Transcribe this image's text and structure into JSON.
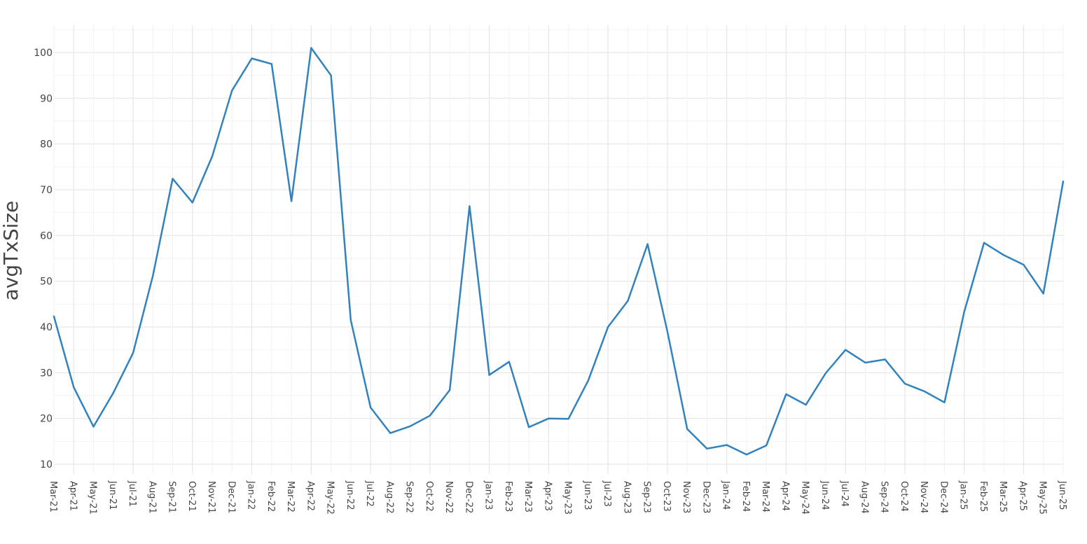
{
  "chart_data": {
    "type": "line",
    "title": "",
    "xlabel": "",
    "ylabel": "avgTxSize",
    "ylim": [
      8,
      106
    ],
    "yticks": [
      10,
      20,
      30,
      40,
      50,
      60,
      70,
      80,
      90,
      100
    ],
    "grid": true,
    "categories": [
      "Mar-21",
      "Apr-21",
      "May-21",
      "Jun-21",
      "Jul-21",
      "Aug-21",
      "Sep-21",
      "Oct-21",
      "Nov-21",
      "Dec-21",
      "Jan-22",
      "Feb-22",
      "Mar-22",
      "Apr-22",
      "May-22",
      "Jun-22",
      "Jul-22",
      "Aug-22",
      "Sep-22",
      "Oct-22",
      "Nov-22",
      "Dec-22",
      "Jan-23",
      "Feb-23",
      "Mar-23",
      "Apr-23",
      "May-23",
      "Jun-23",
      "Jul-23",
      "Aug-23",
      "Sep-23",
      "Oct-23",
      "Nov-23",
      "Dec-23",
      "Jan-24",
      "Feb-24",
      "Mar-24",
      "Apr-24",
      "May-24",
      "Jun-24",
      "Jul-24",
      "Aug-24",
      "Sep-24",
      "Oct-24",
      "Nov-24",
      "Dec-24",
      "Jan-25",
      "Feb-25",
      "Mar-25",
      "Apr-25",
      "May-25",
      "Jun-25"
    ],
    "series": [
      {
        "color": "#3182bd",
        "values": [
          42.3,
          26.8,
          18.2,
          25.6,
          34.3,
          51.2,
          72.4,
          67.2,
          77.3,
          91.7,
          98.7,
          97.5,
          67.5,
          101.0,
          95.0,
          41.5,
          22.4,
          16.8,
          18.3,
          20.6,
          26.2,
          66.4,
          29.5,
          32.4,
          18.1,
          20.0,
          19.9,
          28.3,
          40.0,
          45.7,
          58.1,
          39.0,
          17.7,
          13.4,
          14.2,
          12.1,
          14.1,
          25.3,
          23.0,
          29.9,
          35.0,
          32.2,
          32.9,
          27.6,
          25.9,
          23.5,
          43.3,
          58.4,
          55.7,
          53.6,
          47.3,
          71.8
        ]
      }
    ]
  }
}
